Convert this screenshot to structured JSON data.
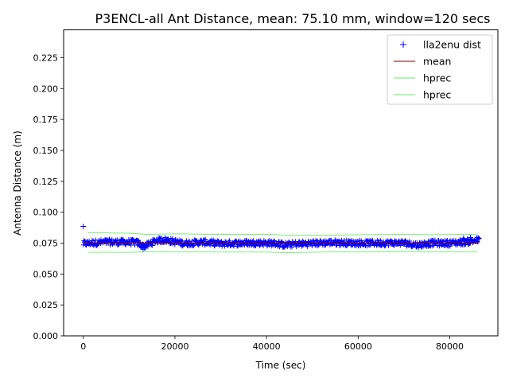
{
  "chart_data": {
    "type": "scatter",
    "title": "P3ENCL-all Ant Distance, mean: 75.10 mm, window=120 secs",
    "xlabel": "Time (sec)",
    "ylabel": "Antenna Distance (m)",
    "xlim": [
      -4300,
      90500
    ],
    "ylim": [
      0.0,
      0.2475
    ],
    "xticks": [
      0,
      20000,
      40000,
      60000,
      80000
    ],
    "xtick_labels": [
      "0",
      "20000",
      "40000",
      "60000",
      "80000"
    ],
    "yticks": [
      0.0,
      0.025,
      0.05,
      0.075,
      0.1,
      0.125,
      0.15,
      0.175,
      0.2,
      0.225
    ],
    "ytick_labels": [
      "0.000",
      "0.025",
      "0.050",
      "0.075",
      "0.100",
      "0.125",
      "0.150",
      "0.175",
      "0.200",
      "0.225"
    ],
    "grid": false,
    "legend_position": "top-right",
    "series": [
      {
        "name": "lla2enu dist",
        "style": "markers",
        "marker": "+",
        "color": "#0000ff",
        "x_range": [
          0,
          86400
        ],
        "outliers": [
          {
            "x": 0,
            "y": 0.0885
          },
          {
            "x": 84500,
            "y": 0.0795
          },
          {
            "x": 83000,
            "y": 0.079
          }
        ],
        "envelope_x": [
          0,
          2000,
          5000,
          10000,
          12000,
          13000,
          14000,
          16000,
          18000,
          20000,
          22000,
          26000,
          28000,
          30000,
          34000,
          38000,
          42000,
          44000,
          46000,
          50000,
          54000,
          58000,
          62000,
          66000,
          70000,
          73000,
          76000,
          80000,
          84000,
          86400
        ],
        "envelope_center": [
          0.0745,
          0.0752,
          0.0758,
          0.0758,
          0.0752,
          0.0722,
          0.0735,
          0.0772,
          0.0775,
          0.076,
          0.0748,
          0.0758,
          0.0752,
          0.0745,
          0.075,
          0.0752,
          0.0748,
          0.0735,
          0.0742,
          0.0748,
          0.0755,
          0.0752,
          0.075,
          0.0752,
          0.0752,
          0.0735,
          0.075,
          0.075,
          0.0762,
          0.0775
        ],
        "envelope_halfwidth": 0.0025
      },
      {
        "name": "mean",
        "style": "line",
        "color": "#8b0000",
        "x": [
          0,
          86400
        ],
        "y": [
          0.0751,
          0.0751
        ]
      },
      {
        "name": "hprec",
        "style": "line",
        "color": "#66ee66",
        "x": [
          1000,
          10000,
          14000,
          20000,
          30000,
          40000,
          44000,
          55000,
          60000,
          70000,
          76000,
          86000
        ],
        "y": [
          0.0835,
          0.083,
          0.082,
          0.0825,
          0.082,
          0.0822,
          0.0815,
          0.0815,
          0.0818,
          0.082,
          0.0818,
          0.0822
        ]
      },
      {
        "name": "hprec",
        "style": "line",
        "color": "#66ee66",
        "x": [
          1000,
          10000,
          14000,
          20000,
          30000,
          40000,
          44000,
          55000,
          60000,
          70000,
          76000,
          86000
        ],
        "y": [
          0.0675,
          0.0675,
          0.068,
          0.068,
          0.0678,
          0.0678,
          0.0672,
          0.068,
          0.068,
          0.0682,
          0.068,
          0.068
        ]
      }
    ]
  }
}
